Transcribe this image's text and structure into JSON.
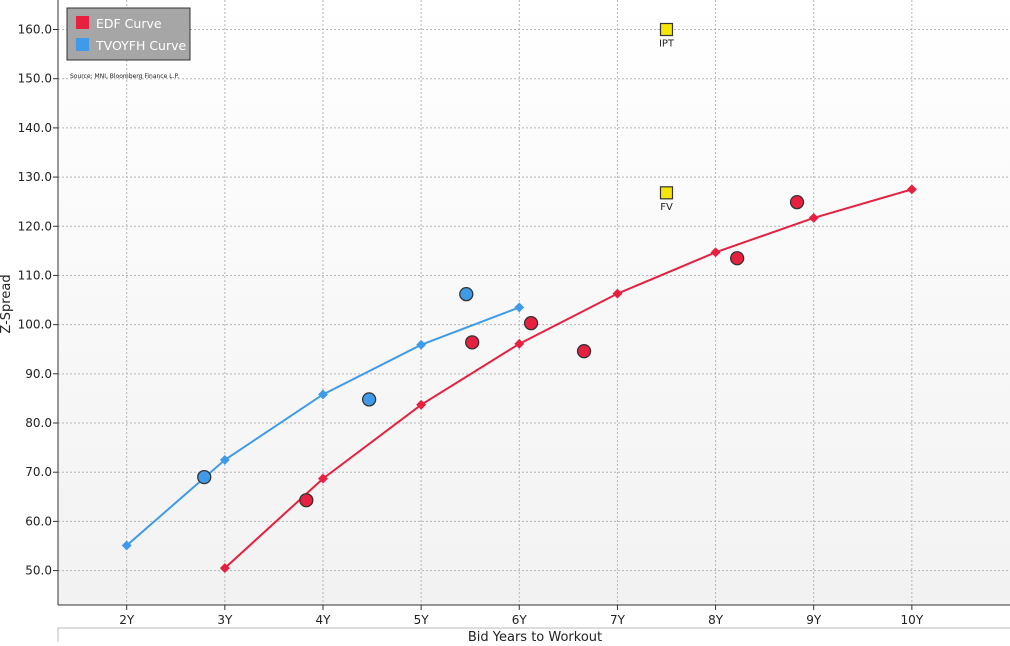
{
  "chart_data": {
    "type": "line",
    "source": "Source: MNI, Bloomberg Finance L.P.",
    "xlabel": "Bid Years to Workout",
    "ylabel": "Z-Spread",
    "xlim": [
      1.3,
      11
    ],
    "ylim": [
      43,
      166
    ],
    "x_ticks": [
      {
        "value": 2,
        "label": "2Y"
      },
      {
        "value": 3,
        "label": "3Y"
      },
      {
        "value": 4,
        "label": "4Y"
      },
      {
        "value": 5,
        "label": "5Y"
      },
      {
        "value": 6,
        "label": "6Y"
      },
      {
        "value": 7,
        "label": "7Y"
      },
      {
        "value": 8,
        "label": "8Y"
      },
      {
        "value": 9,
        "label": "9Y"
      },
      {
        "value": 10,
        "label": "10Y"
      }
    ],
    "y_ticks": [
      {
        "value": 50,
        "label": "50.0"
      },
      {
        "value": 60,
        "label": "60.0"
      },
      {
        "value": 70,
        "label": "70.0"
      },
      {
        "value": 80,
        "label": "80.0"
      },
      {
        "value": 90,
        "label": "90.0"
      },
      {
        "value": 100,
        "label": "100.0"
      },
      {
        "value": 110,
        "label": "110.0"
      },
      {
        "value": 120,
        "label": "120.0"
      },
      {
        "value": 130,
        "label": "130.0"
      },
      {
        "value": 140,
        "label": "140.0"
      },
      {
        "value": 150,
        "label": "150.0"
      },
      {
        "value": 160,
        "label": "160.0"
      }
    ],
    "series": [
      {
        "name": "EDF Curve",
        "color": "#e8203f",
        "curve": {
          "x": [
            3,
            4,
            5,
            6,
            7,
            8,
            9,
            10
          ],
          "y": [
            50.5,
            68.7,
            83.7,
            96.1,
            106.3,
            114.7,
            121.7,
            127.5
          ]
        },
        "bonds": {
          "x": [
            3.83,
            5.52,
            6.12,
            6.66,
            8.22,
            8.83
          ],
          "y": [
            64.3,
            96.4,
            100.3,
            94.6,
            113.5,
            124.9
          ]
        }
      },
      {
        "name": "TVOYFH Curve",
        "color": "#3f9bea",
        "curve": {
          "x": [
            2,
            3,
            4,
            5,
            6
          ],
          "y": [
            55.1,
            72.5,
            85.8,
            95.9,
            103.5
          ]
        },
        "bonds": {
          "x": [
            2.79,
            4.47,
            5.46
          ],
          "y": [
            69.0,
            84.8,
            106.2
          ]
        }
      }
    ],
    "annotations": [
      {
        "label": "IPT",
        "x": 7.5,
        "y": 160.0,
        "color": "#f5e60a"
      },
      {
        "label": "FV",
        "x": 7.5,
        "y": 126.8,
        "color": "#f5e60a"
      }
    ]
  }
}
